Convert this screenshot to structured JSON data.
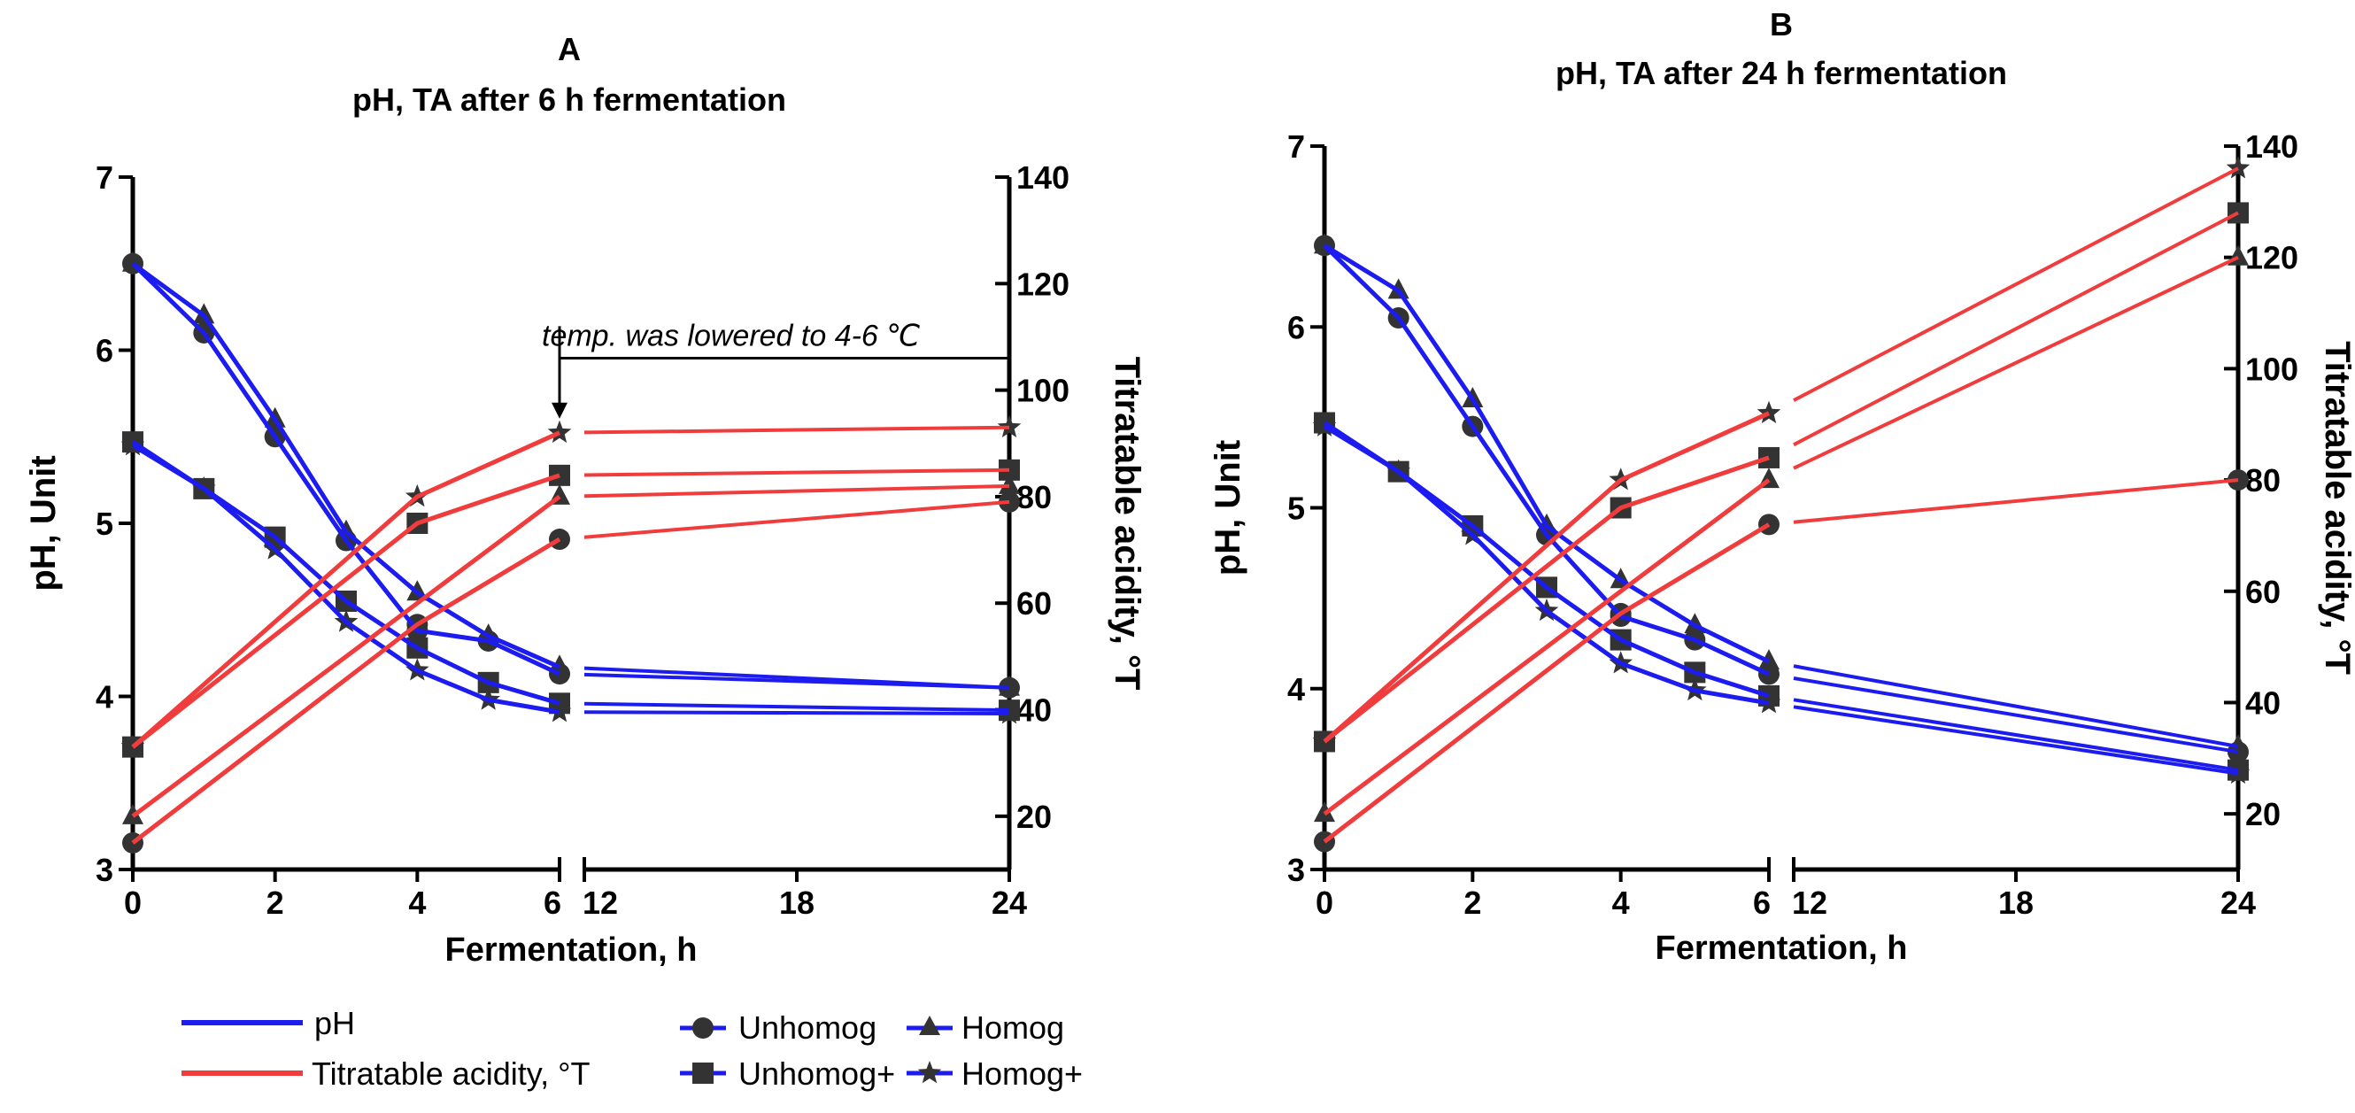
{
  "colors": {
    "ph": "#1c1cf0",
    "ta": "#f03c3c",
    "axis": "#000000",
    "marker": "#333333"
  },
  "legend": {
    "ph_label": "pH",
    "ta_label": "Titratable acidity, °T",
    "unhomog": "Unhomog",
    "homog": "Homog",
    "unhomog_plus": "Unhomog+",
    "homog_plus": "Homog+"
  },
  "chart_data": [
    {
      "type": "line",
      "panel_letter": "A",
      "title": "pH, TA after 6 h fermentation",
      "xlabel": "Fermentation, h",
      "ylabel_left": "pH, Unit",
      "ylabel_right": "Titratable acidity, °T",
      "x_ticks_left": [
        0,
        2,
        4,
        6
      ],
      "x_ticks_right": [
        12,
        18,
        24
      ],
      "axis_break_between": [
        6,
        12
      ],
      "ylim_left": [
        3,
        7
      ],
      "yticks_left": [
        3,
        4,
        5,
        6,
        7
      ],
      "ylim_right": [
        10,
        140
      ],
      "yticks_right": [
        20,
        40,
        60,
        80,
        100,
        120,
        140
      ],
      "annotation": {
        "text": "temp. was lowered to  4-6 ℃",
        "at_x": 6
      },
      "legend_placement": "bottom",
      "series": [
        {
          "name": "Unhomog",
          "measure": "pH",
          "marker": "circle",
          "x": [
            0,
            1,
            2,
            3,
            4,
            5,
            6,
            24
          ],
          "y": [
            6.5,
            6.1,
            5.5,
            4.9,
            4.38,
            4.32,
            4.13,
            4.05
          ]
        },
        {
          "name": "Homog",
          "measure": "pH",
          "marker": "triangle",
          "x": [
            0,
            1,
            2,
            3,
            4,
            5,
            6,
            24
          ],
          "y": [
            6.5,
            6.2,
            5.6,
            4.95,
            4.6,
            4.35,
            4.17,
            4.05
          ]
        },
        {
          "name": "Unhomog+",
          "measure": "pH",
          "marker": "square",
          "x": [
            0,
            1,
            2,
            3,
            4,
            5,
            6,
            24
          ],
          "y": [
            5.47,
            5.2,
            4.92,
            4.55,
            4.28,
            4.08,
            3.96,
            3.92
          ]
        },
        {
          "name": "Homog+",
          "measure": "pH",
          "marker": "star",
          "x": [
            0,
            1,
            2,
            3,
            4,
            5,
            6,
            24
          ],
          "y": [
            5.45,
            5.2,
            4.85,
            4.43,
            4.15,
            3.98,
            3.91,
            3.9
          ]
        },
        {
          "name": "Unhomog",
          "measure": "TA",
          "marker": "circle",
          "x": [
            0,
            4,
            6,
            24
          ],
          "y": [
            15,
            56,
            72,
            79
          ]
        },
        {
          "name": "Homog",
          "measure": "TA",
          "marker": "triangle",
          "x": [
            0,
            6,
            24
          ],
          "y": [
            20,
            80,
            82
          ]
        },
        {
          "name": "Unhomog+",
          "measure": "TA",
          "marker": "square",
          "x": [
            0,
            4,
            6,
            24
          ],
          "y": [
            33,
            75,
            84,
            85
          ]
        },
        {
          "name": "Homog+",
          "measure": "TA",
          "marker": "star",
          "x": [
            0,
            4,
            6,
            24
          ],
          "y": [
            33,
            80,
            92,
            93
          ]
        }
      ]
    },
    {
      "type": "line",
      "panel_letter": "B",
      "title": "pH, TA after 24 h fermentation",
      "xlabel": "Fermentation, h",
      "ylabel_left": "pH, Unit",
      "ylabel_right": "Titratable acidity, °T",
      "x_ticks_left": [
        0,
        2,
        4,
        6
      ],
      "x_ticks_right": [
        12,
        18,
        24
      ],
      "axis_break_between": [
        6,
        12
      ],
      "ylim_left": [
        3,
        7
      ],
      "yticks_left": [
        3,
        4,
        5,
        6,
        7
      ],
      "ylim_right": [
        10,
        140
      ],
      "yticks_right": [
        20,
        40,
        60,
        80,
        100,
        120,
        140
      ],
      "series": [
        {
          "name": "Unhomog",
          "measure": "pH",
          "marker": "circle",
          "x": [
            0,
            1,
            2,
            3,
            4,
            5,
            6,
            24
          ],
          "y": [
            6.45,
            6.05,
            5.45,
            4.85,
            4.4,
            4.27,
            4.08,
            3.65
          ]
        },
        {
          "name": "Homog",
          "measure": "pH",
          "marker": "triangle",
          "x": [
            0,
            1,
            2,
            3,
            4,
            5,
            6,
            24
          ],
          "y": [
            6.45,
            6.2,
            5.6,
            4.9,
            4.6,
            4.35,
            4.15,
            3.68
          ]
        },
        {
          "name": "Unhomog+",
          "measure": "pH",
          "marker": "square",
          "x": [
            0,
            1,
            2,
            3,
            4,
            5,
            6,
            24
          ],
          "y": [
            5.47,
            5.2,
            4.9,
            4.56,
            4.27,
            4.09,
            3.96,
            3.55
          ]
        },
        {
          "name": "Homog+",
          "measure": "pH",
          "marker": "star",
          "x": [
            0,
            1,
            2,
            3,
            4,
            5,
            6,
            24
          ],
          "y": [
            5.45,
            5.2,
            4.85,
            4.43,
            4.14,
            3.99,
            3.92,
            3.53
          ]
        },
        {
          "name": "Unhomog",
          "measure": "TA",
          "marker": "circle",
          "x": [
            0,
            4,
            6,
            24
          ],
          "y": [
            15,
            56,
            72,
            80
          ]
        },
        {
          "name": "Homog",
          "measure": "TA",
          "marker": "triangle",
          "x": [
            0,
            6,
            24
          ],
          "y": [
            20,
            80,
            120
          ]
        },
        {
          "name": "Unhomog+",
          "measure": "TA",
          "marker": "square",
          "x": [
            0,
            4,
            6,
            24
          ],
          "y": [
            33,
            75,
            84,
            128
          ]
        },
        {
          "name": "Homog+",
          "measure": "TA",
          "marker": "star",
          "x": [
            0,
            4,
            6,
            24
          ],
          "y": [
            33,
            80,
            92,
            136
          ]
        }
      ]
    }
  ]
}
